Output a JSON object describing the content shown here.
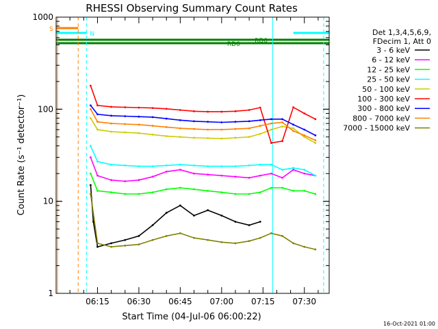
{
  "chart_data": {
    "type": "line",
    "title": "RHESSI Observing Summary Count Rates",
    "xlabel": "Start Time (04-Jul-06 06:00:22)",
    "ylabel": "Count Rate (s⁻¹ detector⁻¹)",
    "yscale": "log",
    "ylim": [
      1,
      1000
    ],
    "xlim_minutes_after_0600": [
      0,
      99
    ],
    "x_ticks": [
      {
        "label": "06:15",
        "min": 15
      },
      {
        "label": "06:30",
        "min": 30
      },
      {
        "label": "06:45",
        "min": 45
      },
      {
        "label": "07:00",
        "min": 60
      },
      {
        "label": "07:15",
        "min": 75
      },
      {
        "label": "07:30",
        "min": 90
      }
    ],
    "y_ticks": [
      {
        "label": "1",
        "value": 1
      },
      {
        "label": "10",
        "value": 10
      },
      {
        "label": "100",
        "value": 100
      },
      {
        "label": "1000",
        "value": 1000
      }
    ],
    "legend": {
      "placement": "right",
      "header": [
        "Det 1,3,4,5,6,9,",
        "FDecim 1, Att 0"
      ]
    },
    "series": [
      {
        "name": "3 - 6 keV",
        "color": "#000000",
        "x": [
          12.5,
          13.5,
          15,
          20,
          25,
          30,
          35,
          40,
          45,
          50,
          55,
          60,
          65,
          70,
          74,
          78,
          82,
          86,
          90,
          94
        ],
        "y": [
          15,
          6,
          3.2,
          3.5,
          3.8,
          4.2,
          5.5,
          7.5,
          9,
          7,
          8,
          7,
          6,
          5.5,
          6,
          null,
          null,
          null,
          null,
          null
        ]
      },
      {
        "name": "6 - 12 keV",
        "color": "#ff00ff",
        "x": [
          12.5,
          15,
          20,
          25,
          30,
          35,
          40,
          45,
          50,
          55,
          60,
          65,
          70,
          74,
          78,
          82,
          86,
          90,
          94
        ],
        "y": [
          30,
          19,
          17,
          16.5,
          17,
          18.5,
          21,
          22,
          20,
          19.5,
          19,
          18.5,
          18,
          19,
          20,
          18,
          22,
          20,
          19
        ]
      },
      {
        "name": "12 - 25 keV",
        "color": "#00ff00",
        "x": [
          12.5,
          15,
          20,
          25,
          30,
          35,
          40,
          45,
          50,
          55,
          60,
          65,
          70,
          74,
          78,
          82,
          86,
          90,
          94
        ],
        "y": [
          20,
          13,
          12.5,
          12,
          12,
          12.5,
          13.5,
          14,
          13.5,
          13,
          12.5,
          12,
          12,
          12.5,
          14,
          14,
          13,
          13,
          12
        ]
      },
      {
        "name": "25 - 50 keV",
        "color": "#00ffff",
        "x": [
          12.5,
          15,
          20,
          25,
          30,
          35,
          40,
          45,
          50,
          55,
          60,
          65,
          70,
          74,
          78,
          82,
          86,
          90,
          94
        ],
        "y": [
          40,
          27,
          25,
          24.5,
          24,
          24,
          24.5,
          25,
          24.5,
          24,
          24,
          24,
          24.5,
          25,
          25,
          22,
          23,
          22,
          19
        ]
      },
      {
        "name": "50 - 100 keV",
        "color": "#cccc00",
        "x": [
          12.5,
          15,
          20,
          25,
          30,
          35,
          40,
          45,
          50,
          55,
          60,
          65,
          70,
          74,
          78,
          82,
          86,
          90,
          94
        ],
        "y": [
          80,
          60,
          57,
          56,
          55,
          53,
          51,
          50,
          49,
          48.5,
          48,
          49,
          50,
          54,
          60,
          65,
          62,
          50,
          43
        ]
      },
      {
        "name": "100 - 300 keV",
        "color": "#ff0000",
        "x": [
          12.5,
          15,
          20,
          25,
          30,
          35,
          40,
          45,
          50,
          55,
          60,
          65,
          70,
          74,
          78,
          82,
          86,
          90,
          94
        ],
        "y": [
          180,
          110,
          106,
          105,
          104,
          103,
          101,
          98,
          95,
          94,
          94,
          95,
          98,
          104,
          43,
          45,
          105,
          90,
          78
        ]
      },
      {
        "name": "300 - 800 keV",
        "color": "#0000ff",
        "x": [
          12.5,
          15,
          20,
          25,
          30,
          35,
          40,
          45,
          50,
          55,
          60,
          65,
          70,
          74,
          78,
          82,
          86,
          90,
          94
        ],
        "y": [
          110,
          88,
          85,
          84,
          83,
          82,
          79,
          76,
          74,
          73,
          72,
          73,
          74,
          76,
          78,
          78,
          68,
          60,
          52
        ]
      },
      {
        "name": "800 - 7000 keV",
        "color": "#ff8000",
        "x": [
          12.5,
          15,
          20,
          25,
          30,
          35,
          40,
          45,
          50,
          55,
          60,
          65,
          70,
          74,
          78,
          82,
          86,
          90,
          94
        ],
        "y": [
          100,
          73,
          70,
          69,
          68,
          66,
          64,
          62,
          61,
          60,
          60,
          61,
          62,
          66,
          70,
          72,
          58,
          52,
          46
        ]
      },
      {
        "name": "7000 - 15000 keV",
        "color": "#808000",
        "x": [
          12.5,
          15,
          20,
          25,
          30,
          35,
          40,
          45,
          50,
          55,
          60,
          65,
          70,
          74,
          78,
          82,
          86,
          90,
          94
        ],
        "y": [
          12,
          3.5,
          3.2,
          3.3,
          3.4,
          3.8,
          4.2,
          4.5,
          4,
          3.8,
          3.6,
          3.5,
          3.7,
          4,
          4.5,
          4.2,
          3.5,
          3.2,
          3
        ]
      }
    ],
    "flag_bars": [
      {
        "label": "S",
        "color": "#ff8000",
        "x_start": 0,
        "x_end": 8,
        "level": 0
      },
      {
        "label": "N",
        "color": "#00ffff",
        "x_start": 0,
        "x_end": 11,
        "level": 1
      },
      {
        "label": "N",
        "color": "#00ffff",
        "x_start": 86,
        "x_end": 99,
        "level": 1
      },
      {
        "label": "RD0",
        "color": "#008000",
        "x_start": 0,
        "x_end": 99,
        "level": 2
      },
      {
        "label": "RD6",
        "color": "#008000",
        "x_start": 0,
        "x_end": 99,
        "level": 3
      }
    ],
    "vlines": [
      {
        "min": 0.5,
        "color": "#ff8000",
        "dash": false
      },
      {
        "min": 8,
        "color": "#ff8000",
        "dash": true
      },
      {
        "min": 11,
        "color": "#00ffff",
        "dash": true
      },
      {
        "min": 78.5,
        "color": "#00ffff",
        "dash": false
      },
      {
        "min": 97,
        "color": "#00ffff",
        "dash": true
      }
    ],
    "footer": "16-Oct-2021 01:00"
  }
}
